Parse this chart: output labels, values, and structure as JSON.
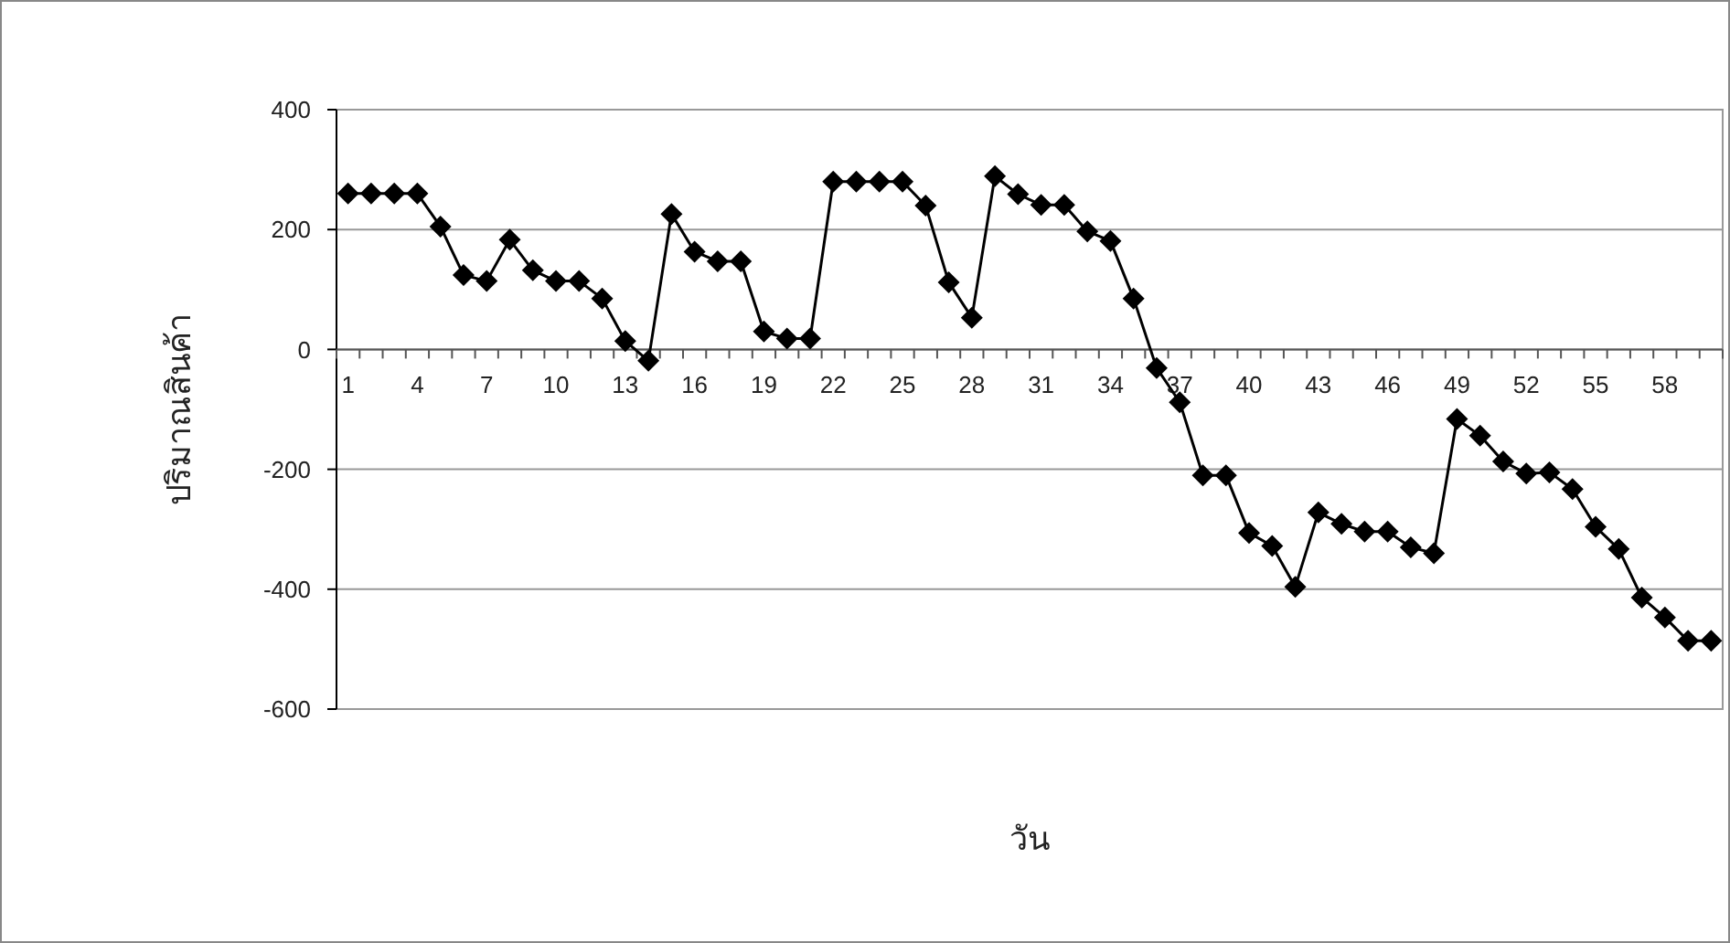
{
  "chart_data": {
    "type": "line",
    "xlabel": "วัน",
    "ylabel": "ปริมาณสินค้า",
    "categories": [
      "1",
      null,
      null,
      "4",
      null,
      null,
      "7",
      null,
      null,
      "10",
      null,
      null,
      "13",
      null,
      null,
      "16",
      null,
      null,
      "19",
      null,
      null,
      "22",
      null,
      null,
      "25",
      null,
      null,
      "28",
      null,
      null,
      "31",
      null,
      null,
      "34",
      null,
      null,
      "37",
      null,
      null,
      "40",
      null,
      null,
      "43",
      null,
      null,
      "46",
      null,
      null,
      "49",
      null,
      null,
      "52",
      null,
      null,
      "55",
      null,
      null,
      "58",
      null,
      null
    ],
    "series": [
      {
        "color": "#000000",
        "values": [
          260,
          260,
          260,
          260,
          205,
          124,
          114,
          183,
          132,
          114,
          114,
          85,
          14,
          -19,
          226,
          163,
          147,
          147,
          30,
          18,
          18,
          280,
          280,
          280,
          280,
          240,
          112,
          53,
          289,
          259,
          241,
          241,
          197,
          181,
          85,
          -31,
          -88,
          -210,
          -210,
          -306,
          -328,
          -396,
          -272,
          -291,
          -304,
          -304,
          -330,
          -340,
          -116,
          -144,
          -187,
          -207,
          -205,
          -233,
          -296,
          -333,
          -414,
          -447,
          -486,
          -486
        ]
      }
    ],
    "ylim": [
      -600,
      400
    ],
    "yticks": [
      -600,
      -400,
      -200,
      0,
      200,
      400
    ],
    "grid": "y",
    "marker": "diamond",
    "line_style": "solid"
  }
}
